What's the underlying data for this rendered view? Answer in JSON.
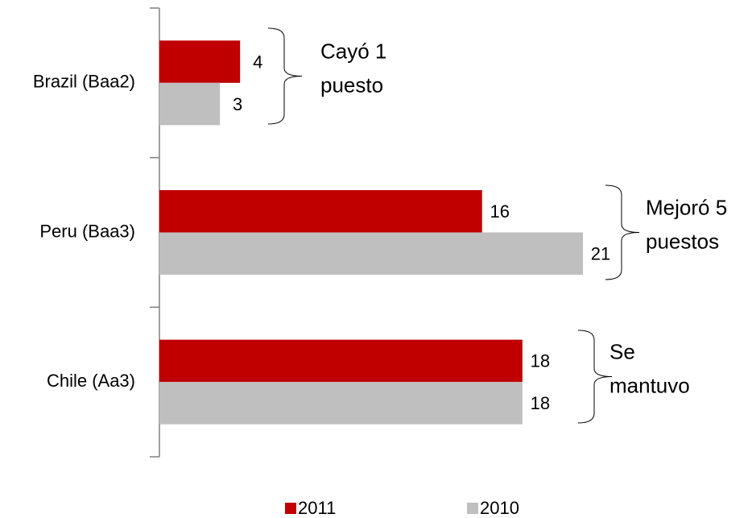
{
  "chart_data": {
    "type": "bar",
    "orientation": "horizontal",
    "categories": [
      "Brazil (Baa2)",
      "Peru (Baa3)",
      "Chile (Aa3)"
    ],
    "series": [
      {
        "name": "2011",
        "color": "#c00000",
        "values": [
          4,
          16,
          18
        ]
      },
      {
        "name": "2010",
        "color": "#bfbfbf",
        "values": [
          3,
          21,
          18
        ]
      }
    ],
    "xlim": [
      0,
      21
    ],
    "annotations": [
      [
        "Cayó 1",
        "puesto"
      ],
      [
        "Mejoró 5",
        "puestos"
      ],
      [
        "Se",
        "mantuvo"
      ]
    ],
    "legend": "bottom"
  }
}
